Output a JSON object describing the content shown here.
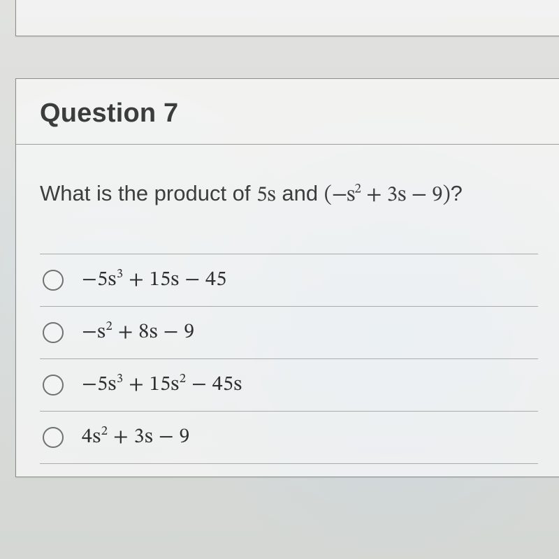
{
  "question": {
    "title": "Question 7",
    "prompt_prefix": "What is the product of ",
    "prompt_math_1": "5s",
    "prompt_mid": " and ",
    "prompt_math_2_open": "(",
    "prompt_math_2_t1": "−s",
    "prompt_math_2_t1_exp": "2",
    "prompt_math_2_t2": " + 3s − 9",
    "prompt_math_2_close": ")",
    "prompt_suffix": "?"
  },
  "options": [
    {
      "lead": "−5s",
      "exp1": "3",
      "mid1": " + 15s − 45",
      "exp2": "",
      "tail": ""
    },
    {
      "lead": "−s",
      "exp1": "2",
      "mid1": " + 8s − 9",
      "exp2": "",
      "tail": ""
    },
    {
      "lead": "−5s",
      "exp1": "3",
      "mid1": " + 15s",
      "exp2": "2",
      "tail": " − 45s"
    },
    {
      "lead": "4s",
      "exp1": "2",
      "mid1": " + 3s − 9",
      "exp2": "",
      "tail": ""
    }
  ],
  "style": {
    "background": "#d8dbd9",
    "card_border": "#8b8d8a",
    "divider": "#a9aca8",
    "title_color": "#3b3d3c",
    "text_color": "#3c3e3d",
    "radio_border": "#6f7270",
    "title_fontsize": 38,
    "prompt_fontsize": 31,
    "option_fontsize": 30
  }
}
